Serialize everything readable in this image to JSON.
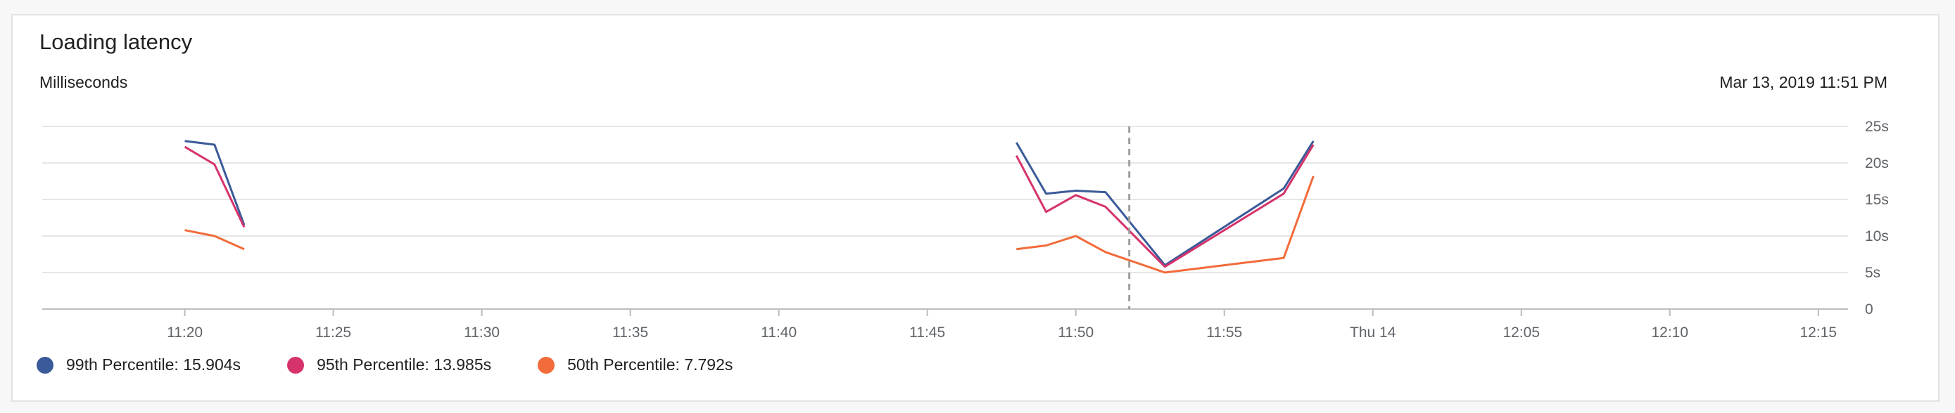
{
  "panel": {
    "title": "Loading latency",
    "subtitle": "Milliseconds",
    "hover_time": "Mar 13, 2019 11:51 PM"
  },
  "legend": [
    {
      "label": "99th Percentile: 15.904s",
      "color": "#3b5a99",
      "icon": "legend-dot"
    },
    {
      "label": "95th Percentile: 13.985s",
      "color": "#d6336c",
      "icon": "legend-dot"
    },
    {
      "label": "50th Percentile: 7.792s",
      "color": "#f26b3a",
      "icon": "legend-dot"
    }
  ],
  "colors": {
    "grid": "#e6e6e6",
    "axis": "#bdbdbd",
    "crosshair": "#9e9e9e"
  },
  "chart_data": {
    "type": "line",
    "xlabel": "",
    "ylabel": "Milliseconds",
    "xlim": [
      1155.2,
      1216
    ],
    "ylim": [
      0,
      25
    ],
    "x_ticks": [
      {
        "x": 1160,
        "label": "11:20"
      },
      {
        "x": 1165,
        "label": "11:25"
      },
      {
        "x": 1170,
        "label": "11:30"
      },
      {
        "x": 1175,
        "label": "11:35"
      },
      {
        "x": 1180,
        "label": "11:40"
      },
      {
        "x": 1185,
        "label": "11:45"
      },
      {
        "x": 1190,
        "label": "11:50"
      },
      {
        "x": 1195,
        "label": "11:55"
      },
      {
        "x": 1200,
        "label": "Thu 14"
      },
      {
        "x": 1205,
        "label": "12:05"
      },
      {
        "x": 1210,
        "label": "12:10"
      },
      {
        "x": 1215,
        "label": "12:15"
      }
    ],
    "y_ticks": [
      {
        "y": 0,
        "label": "0"
      },
      {
        "y": 5,
        "label": "5s"
      },
      {
        "y": 10,
        "label": "10s"
      },
      {
        "y": 15,
        "label": "15s"
      },
      {
        "y": 20,
        "label": "20s"
      },
      {
        "y": 25,
        "label": "25s"
      }
    ],
    "grid": true,
    "crosshair_x": 1191.8,
    "series": [
      {
        "name": "99th Percentile",
        "color": "#3b5a99",
        "segments": [
          [
            [
              1160,
              23.0
            ],
            [
              1161,
              22.5
            ],
            [
              1162,
              11.5
            ]
          ],
          [
            [
              1188,
              22.8
            ],
            [
              1189,
              15.8
            ],
            [
              1190,
              16.2
            ],
            [
              1191,
              16.0
            ],
            [
              1193,
              6.0
            ],
            [
              1197,
              16.5
            ],
            [
              1198,
              23.0
            ]
          ]
        ]
      },
      {
        "name": "95th Percentile",
        "color": "#d6336c",
        "segments": [
          [
            [
              1160,
              22.2
            ],
            [
              1161,
              19.8
            ],
            [
              1162,
              11.2
            ]
          ],
          [
            [
              1188,
              21.0
            ],
            [
              1189,
              13.3
            ],
            [
              1190,
              15.6
            ],
            [
              1191,
              14.0
            ],
            [
              1193,
              5.8
            ],
            [
              1197,
              15.8
            ],
            [
              1198,
              22.5
            ]
          ]
        ]
      },
      {
        "name": "50th Percentile",
        "color": "#f26b3a",
        "segments": [
          [
            [
              1160,
              10.8
            ],
            [
              1161,
              10.0
            ],
            [
              1162,
              8.2
            ]
          ],
          [
            [
              1188,
              8.2
            ],
            [
              1189,
              8.7
            ],
            [
              1190,
              10.0
            ],
            [
              1191,
              7.8
            ],
            [
              1193,
              5.0
            ],
            [
              1197,
              7.0
            ],
            [
              1198,
              18.2
            ]
          ]
        ]
      }
    ]
  }
}
